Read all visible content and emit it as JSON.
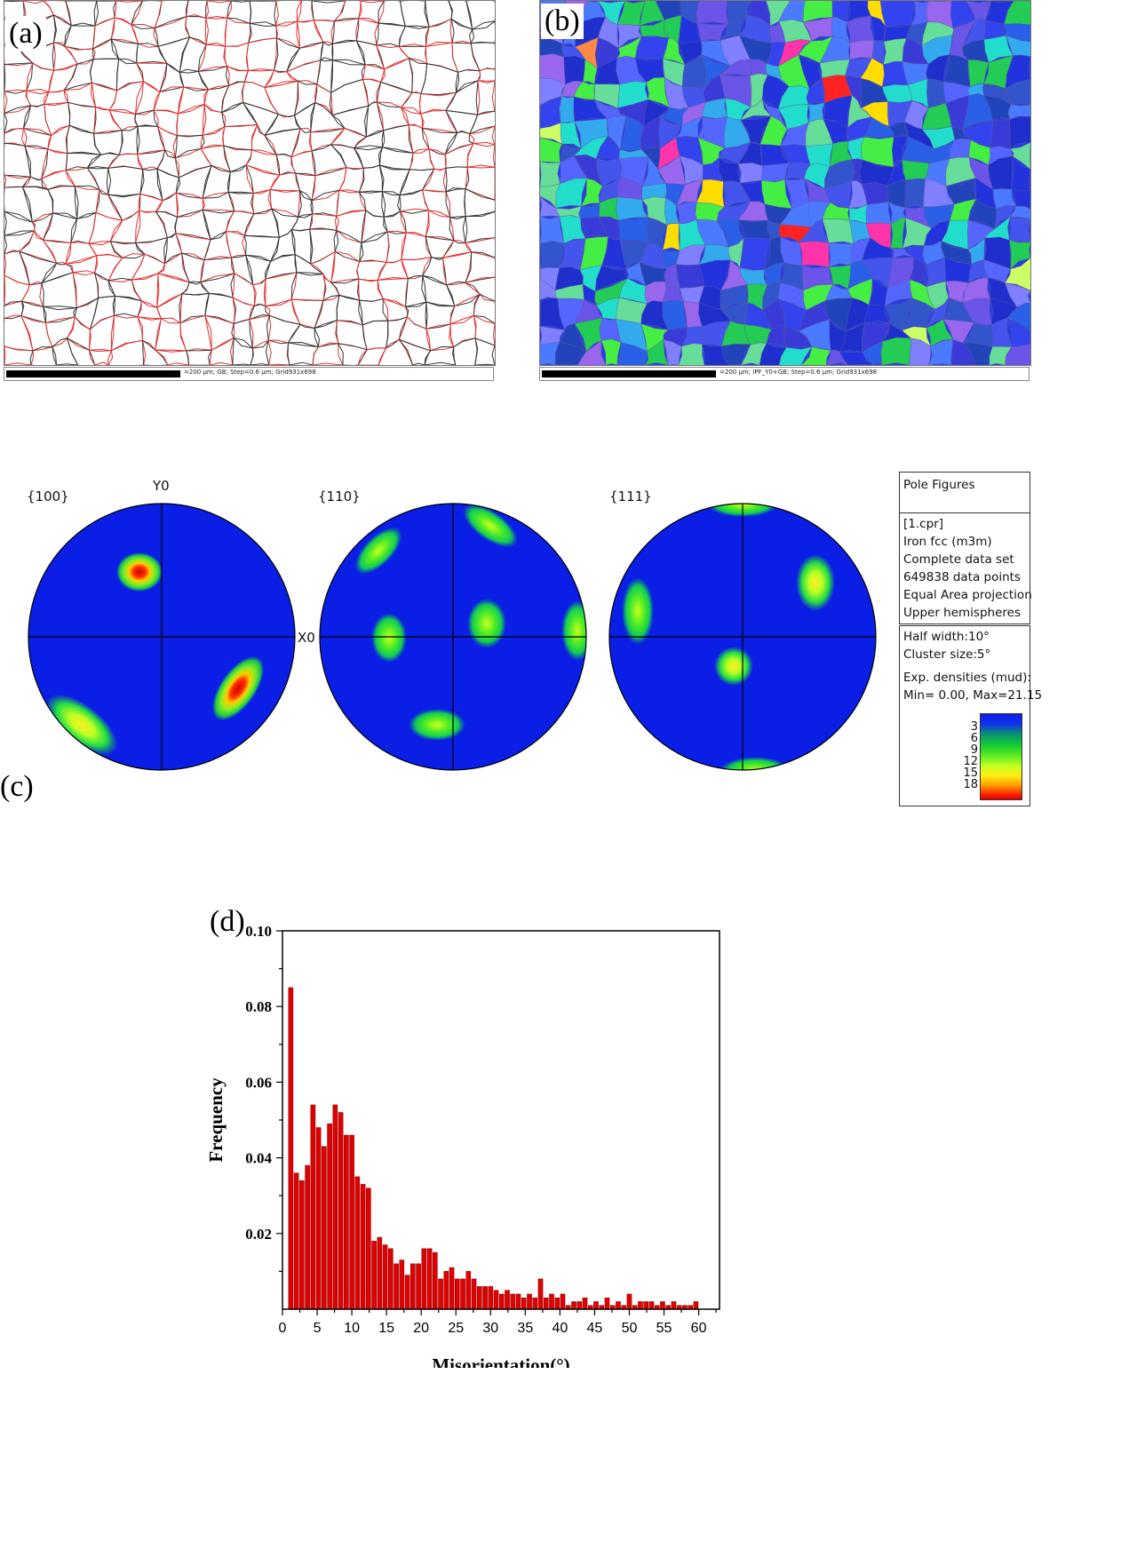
{
  "panels": {
    "a": {
      "letter": "(a)",
      "caption": "=200 µm; GB; Step=0.6 µm; Grid931x698"
    },
    "b": {
      "letter": "(b)",
      "caption": "=200 µm; IPF_Y0+GB; Step=0.6 µm; Grid931x698"
    },
    "c": {
      "letter": "(c)"
    },
    "d": {
      "letter": "(d)"
    }
  },
  "pole_figures": {
    "labels": [
      "{100}",
      "{110}",
      "{111}"
    ],
    "axis_y": "Y0",
    "axis_x": "X0",
    "info": {
      "title": "Pole Figures",
      "dataset": [
        "[1.cpr]",
        "Iron fcc (m3m)",
        "Complete data set",
        "649838 data points",
        "Equal Area projection",
        "Upper hemispheres"
      ],
      "params": [
        "Half width:10°",
        "Cluster size:5°",
        "Exp. densities (mud):",
        "Min= 0.00, Max=21.15"
      ],
      "colorbar_ticks": [
        "3",
        "6",
        "9",
        "12",
        "15",
        "18"
      ]
    }
  },
  "colors": {
    "gb_high": "#333333",
    "gb_low": "#e03030",
    "bar": "#e00000",
    "pf_background": "#0a1ee6"
  },
  "chart_data": {
    "type": "bar",
    "title": "",
    "xlabel": "Misorientation(°)",
    "ylabel": "Frequency",
    "xlim": [
      0,
      63
    ],
    "ylim": [
      0,
      0.1
    ],
    "x_ticks": [
      0,
      5,
      10,
      15,
      20,
      25,
      30,
      35,
      40,
      45,
      50,
      55,
      60
    ],
    "y_ticks": [
      0.02,
      0.04,
      0.06,
      0.08,
      0.1
    ],
    "y_tick_labels": [
      "0.02",
      "0.04",
      "0.06",
      "0.08",
      "0.10"
    ],
    "x": [
      1.2,
      2.0,
      2.8,
      3.6,
      4.4,
      5.2,
      6.0,
      6.8,
      7.6,
      8.4,
      9.2,
      10.0,
      10.8,
      11.6,
      12.4,
      13.2,
      14.0,
      14.8,
      15.6,
      16.4,
      17.2,
      18.0,
      18.8,
      19.6,
      20.4,
      21.2,
      22.0,
      22.8,
      23.6,
      24.4,
      25.2,
      26.0,
      26.8,
      27.6,
      28.4,
      29.2,
      30.0,
      30.8,
      31.6,
      32.4,
      33.2,
      34.0,
      34.8,
      35.6,
      36.4,
      37.2,
      38.0,
      38.8,
      39.6,
      40.4,
      41.2,
      42.0,
      42.8,
      43.6,
      44.4,
      45.2,
      46.0,
      46.8,
      47.6,
      48.4,
      49.2,
      50.0,
      50.8,
      51.6,
      52.4,
      53.2,
      54.0,
      54.8,
      55.6,
      56.4,
      57.2,
      58.0,
      58.8,
      59.6
    ],
    "values": [
      0.085,
      0.036,
      0.034,
      0.038,
      0.054,
      0.048,
      0.043,
      0.049,
      0.054,
      0.052,
      0.046,
      0.046,
      0.035,
      0.033,
      0.032,
      0.018,
      0.019,
      0.017,
      0.016,
      0.012,
      0.013,
      0.009,
      0.012,
      0.012,
      0.016,
      0.016,
      0.015,
      0.008,
      0.01,
      0.011,
      0.008,
      0.008,
      0.01,
      0.008,
      0.006,
      0.006,
      0.006,
      0.005,
      0.004,
      0.005,
      0.004,
      0.004,
      0.003,
      0.004,
      0.003,
      0.008,
      0.003,
      0.004,
      0.003,
      0.004,
      0.001,
      0.002,
      0.002,
      0.003,
      0.001,
      0.002,
      0.001,
      0.003,
      0.001,
      0.002,
      0.001,
      0.004,
      0.001,
      0.002,
      0.002,
      0.002,
      0.001,
      0.002,
      0.001,
      0.002,
      0.001,
      0.001,
      0.001,
      0.002
    ]
  }
}
